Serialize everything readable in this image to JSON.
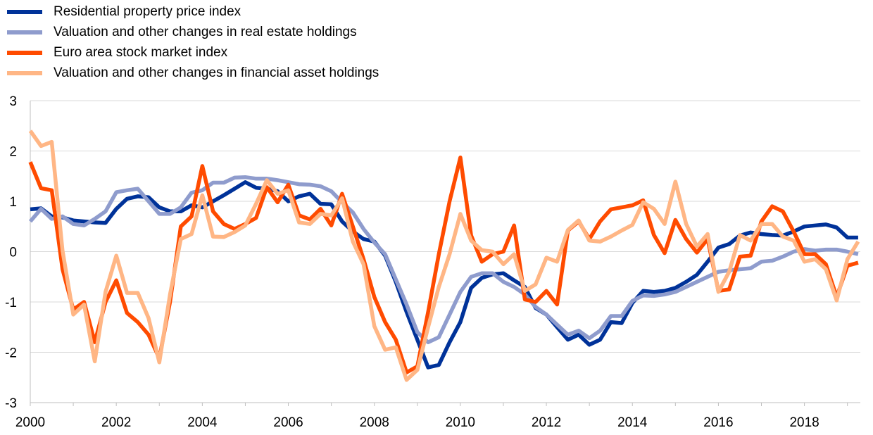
{
  "chart_data": {
    "type": "line",
    "title": "",
    "xlabel": "",
    "ylabel": "",
    "xlim": [
      2000,
      2019.3
    ],
    "ylim": [
      -3,
      3
    ],
    "grid": true,
    "legend_position": "top-left",
    "x_ticks": [
      "2000",
      "2002",
      "2004",
      "2006",
      "2008",
      "2010",
      "2012",
      "2014",
      "2016",
      "2018"
    ],
    "y_ticks": [
      "3",
      "2",
      "1",
      "0",
      "-1",
      "-2",
      "-3"
    ],
    "x": [
      2000,
      2000.25,
      2000.5,
      2000.75,
      2001,
      2001.25,
      2001.5,
      2001.75,
      2002,
      2002.25,
      2002.5,
      2002.75,
      2003,
      2003.25,
      2003.5,
      2003.75,
      2004,
      2004.25,
      2004.5,
      2004.75,
      2005,
      2005.25,
      2005.5,
      2005.75,
      2006,
      2006.25,
      2006.5,
      2006.75,
      2007,
      2007.25,
      2007.5,
      2007.75,
      2008,
      2008.25,
      2008.5,
      2008.75,
      2009,
      2009.25,
      2009.5,
      2009.75,
      2010,
      2010.25,
      2010.5,
      2010.75,
      2011,
      2011.25,
      2011.5,
      2011.75,
      2012,
      2012.25,
      2012.5,
      2012.75,
      2013,
      2013.25,
      2013.5,
      2013.75,
      2014,
      2014.25,
      2014.5,
      2014.75,
      2015,
      2015.25,
      2015.5,
      2015.75,
      2016,
      2016.25,
      2016.5,
      2016.75,
      2017,
      2017.25,
      2017.5,
      2017.75,
      2018,
      2018.25,
      2018.5,
      2018.75,
      2019,
      2019.25
    ],
    "series": [
      {
        "name": "Residential property price index",
        "color": "#003299",
        "values": [
          0.84,
          0.86,
          0.7,
          0.68,
          0.62,
          0.6,
          0.58,
          0.57,
          0.85,
          1.05,
          1.1,
          1.08,
          0.88,
          0.8,
          0.8,
          0.92,
          0.88,
          1.0,
          1.12,
          1.25,
          1.38,
          1.27,
          1.25,
          1.2,
          1.0,
          1.1,
          1.15,
          0.95,
          0.94,
          0.6,
          0.4,
          0.25,
          0.2,
          -0.08,
          -0.6,
          -1.2,
          -1.75,
          -2.3,
          -2.25,
          -1.8,
          -1.4,
          -0.72,
          -0.52,
          -0.45,
          -0.43,
          -0.57,
          -0.7,
          -1.12,
          -1.25,
          -1.5,
          -1.75,
          -1.65,
          -1.85,
          -1.75,
          -1.4,
          -1.42,
          -1.02,
          -0.78,
          -0.8,
          -0.78,
          -0.72,
          -0.6,
          -0.46,
          -0.2,
          0.08,
          0.15,
          0.32,
          0.38,
          0.35,
          0.33,
          0.32,
          0.4,
          0.5,
          0.52,
          0.54,
          0.48,
          0.28,
          0.28
        ]
      },
      {
        "name": "Valuation and other changes in real estate holdings",
        "color": "#8f9ccd",
        "values": [
          0.6,
          0.85,
          0.65,
          0.7,
          0.55,
          0.52,
          0.65,
          0.8,
          1.18,
          1.22,
          1.25,
          1.0,
          0.75,
          0.75,
          0.88,
          1.17,
          1.22,
          1.37,
          1.37,
          1.47,
          1.48,
          1.45,
          1.45,
          1.42,
          1.38,
          1.34,
          1.33,
          1.3,
          1.2,
          0.98,
          0.78,
          0.45,
          0.18,
          -0.05,
          -0.55,
          -1.05,
          -1.6,
          -1.8,
          -1.7,
          -1.25,
          -0.8,
          -0.5,
          -0.43,
          -0.43,
          -0.6,
          -0.7,
          -0.85,
          -1.1,
          -1.25,
          -1.45,
          -1.65,
          -1.57,
          -1.72,
          -1.57,
          -1.28,
          -1.28,
          -0.98,
          -0.87,
          -0.88,
          -0.85,
          -0.8,
          -0.7,
          -0.6,
          -0.5,
          -0.4,
          -0.37,
          -0.35,
          -0.33,
          -0.2,
          -0.18,
          -0.1,
          0.0,
          0.05,
          0.02,
          0.04,
          0.04,
          0.0,
          -0.05
        ]
      },
      {
        "name": "Euro area stock market index",
        "color": "#ff4b00",
        "values": [
          1.78,
          1.26,
          1.22,
          -0.35,
          -1.15,
          -1.0,
          -1.8,
          -1.0,
          -0.57,
          -1.22,
          -1.4,
          -1.65,
          -2.12,
          -1.0,
          0.5,
          0.7,
          1.7,
          0.8,
          0.55,
          0.45,
          0.55,
          0.67,
          1.28,
          0.98,
          1.33,
          0.72,
          0.64,
          0.85,
          0.52,
          1.15,
          0.5,
          -0.15,
          -0.9,
          -1.4,
          -1.75,
          -2.4,
          -2.28,
          -1.2,
          -0.05,
          1.0,
          1.87,
          0.32,
          -0.2,
          -0.05,
          0.0,
          0.52,
          -0.95,
          -1.0,
          -0.78,
          -1.05,
          0.42,
          0.6,
          0.25,
          0.6,
          0.84,
          0.88,
          0.92,
          1.02,
          0.33,
          -0.03,
          0.63,
          0.25,
          -0.02,
          0.25,
          -0.78,
          -0.75,
          -0.1,
          -0.08,
          0.6,
          0.9,
          0.8,
          0.4,
          -0.05,
          -0.05,
          -0.25,
          -0.9,
          -0.28,
          -0.22
        ]
      },
      {
        "name": "Valuation and other changes in financial asset holdings",
        "color": "#ffb685",
        "values": [
          2.4,
          2.1,
          2.18,
          0.02,
          -1.25,
          -1.05,
          -2.18,
          -0.8,
          -0.08,
          -0.82,
          -0.82,
          -1.32,
          -2.2,
          -0.85,
          0.25,
          0.35,
          1.12,
          0.3,
          0.29,
          0.39,
          0.52,
          0.95,
          1.42,
          1.15,
          1.22,
          0.58,
          0.55,
          0.75,
          0.72,
          1.06,
          0.2,
          -0.25,
          -1.48,
          -1.95,
          -1.9,
          -2.55,
          -2.35,
          -1.5,
          -0.7,
          -0.05,
          0.75,
          0.22,
          0.03,
          0.0,
          -0.25,
          -0.05,
          -0.78,
          -0.65,
          -0.12,
          -0.2,
          0.43,
          0.62,
          0.22,
          0.2,
          0.3,
          0.42,
          0.53,
          0.98,
          0.85,
          0.55,
          1.39,
          0.55,
          0.1,
          0.35,
          -0.8,
          -0.4,
          0.33,
          0.22,
          0.55,
          0.55,
          0.3,
          0.22,
          -0.2,
          -0.15,
          -0.35,
          -0.97,
          -0.15,
          0.2
        ]
      }
    ]
  }
}
